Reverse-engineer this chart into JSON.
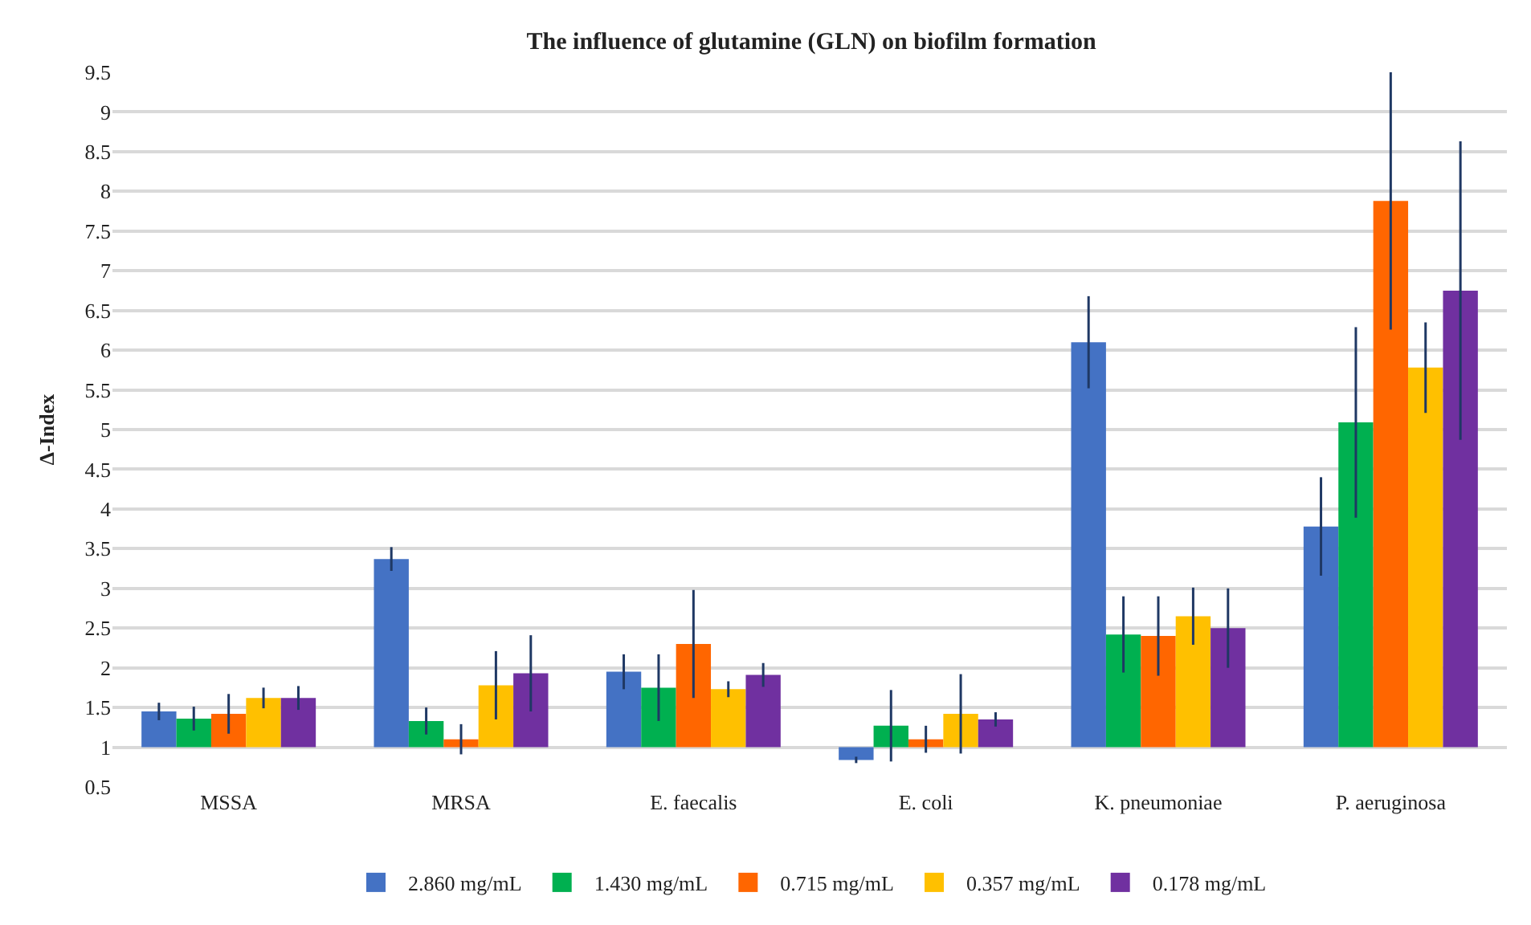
{
  "chart_data": {
    "type": "bar",
    "title": "The influence of glutamine (GLN) on biofilm formation",
    "ylabel": "Δ-Index",
    "categories": [
      "MSSA",
      "MRSA",
      "E. faecalis",
      "E. coli",
      "K. pneumoniae",
      "P. aeruginosa"
    ],
    "series": [
      {
        "name": "2.860 mg/mL",
        "color": "#4472c4",
        "base": [
          1,
          1,
          1,
          1,
          1,
          1
        ],
        "values": [
          0.45,
          2.37,
          0.95,
          -0.16,
          5.1,
          2.78
        ],
        "errors": [
          0.11,
          0.15,
          0.22,
          0.04,
          0.58,
          0.62
        ]
      },
      {
        "name": "1.430 mg/mL",
        "color": "#00b050",
        "base": [
          1,
          1,
          1,
          1,
          1,
          1
        ],
        "values": [
          0.36,
          0.33,
          0.75,
          0.27,
          1.42,
          4.09
        ],
        "errors": [
          0.15,
          0.17,
          0.42,
          0.45,
          0.48,
          1.2
        ]
      },
      {
        "name": "0.715 mg/mL",
        "color": "#ff6600",
        "base": [
          1,
          1,
          1,
          1,
          1,
          1
        ],
        "values": [
          0.42,
          0.1,
          1.3,
          0.1,
          1.4,
          6.88
        ],
        "errors": [
          0.25,
          0.19,
          0.68,
          0.17,
          0.5,
          1.62
        ]
      },
      {
        "name": "0.357 mg/mL",
        "color": "#ffc000",
        "base": [
          1,
          1,
          1,
          1,
          1,
          1
        ],
        "values": [
          0.62,
          0.78,
          0.73,
          0.42,
          1.65,
          4.78
        ],
        "errors": [
          0.13,
          0.43,
          0.1,
          0.5,
          0.36,
          0.57
        ]
      },
      {
        "name": "0.178 mg/mL",
        "color": "#7030a0",
        "base": [
          1,
          1,
          1,
          1,
          1,
          1
        ],
        "values": [
          0.62,
          0.93,
          0.91,
          0.35,
          1.5,
          5.75
        ],
        "errors": [
          0.15,
          0.48,
          0.15,
          0.09,
          0.5,
          1.88
        ]
      }
    ],
    "ylim": [
      0.5,
      9.5
    ],
    "yticks": [
      0.5,
      1,
      1.5,
      2,
      2.5,
      3,
      3.5,
      4,
      4.5,
      5,
      5.5,
      6,
      6.5,
      7,
      7.5,
      8,
      8.5,
      9,
      9.5
    ],
    "grid": "y",
    "legend": "bottom"
  }
}
